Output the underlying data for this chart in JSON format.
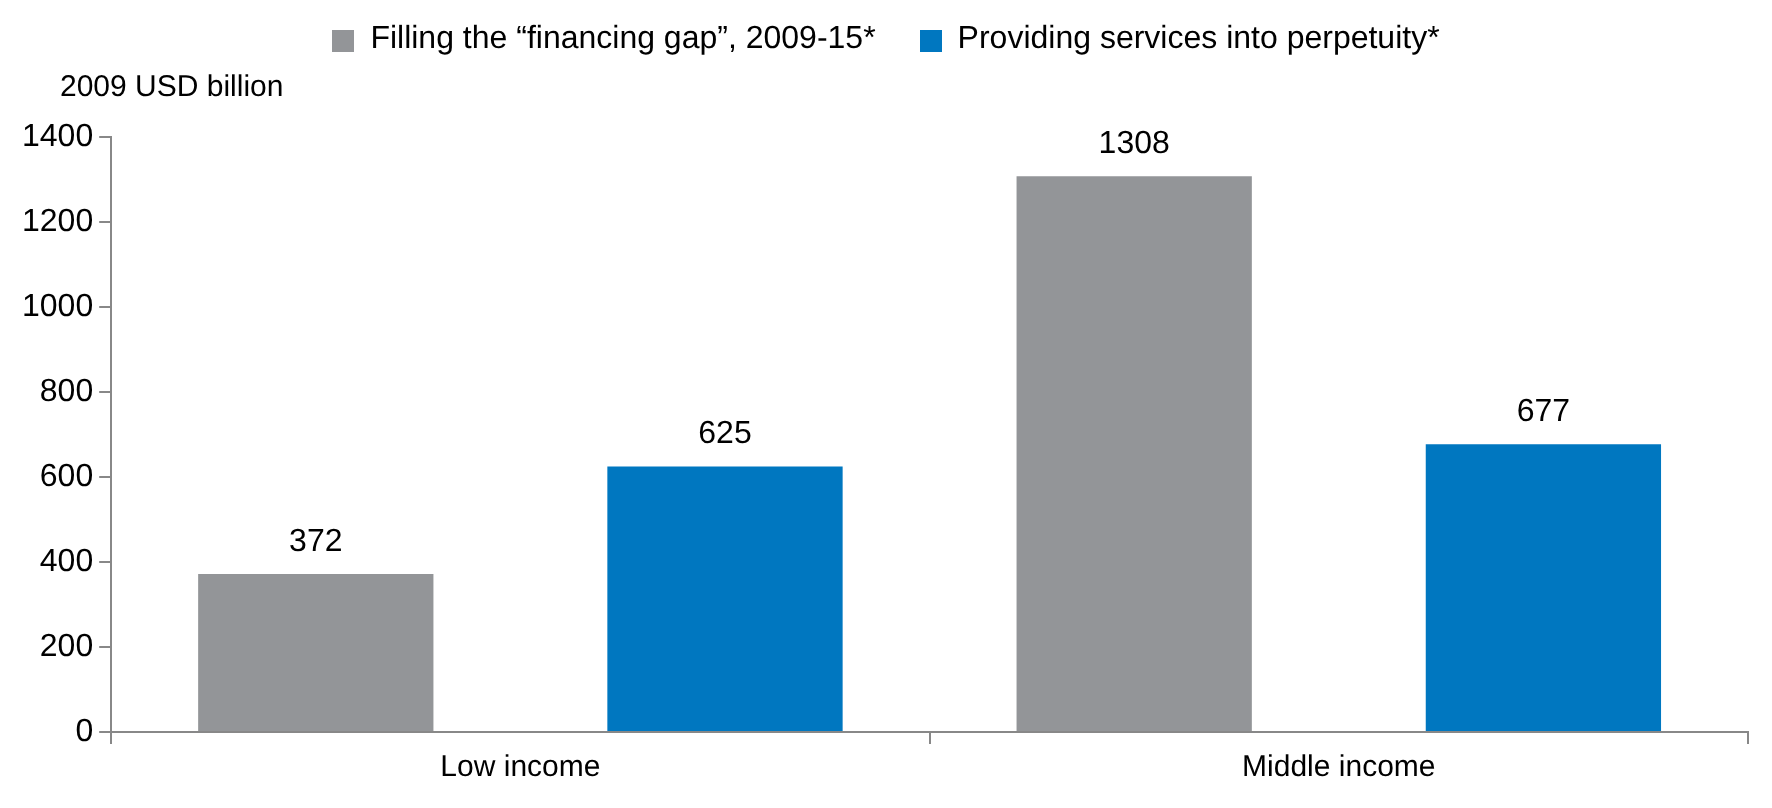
{
  "chart_data": {
    "type": "bar",
    "ylabel": "2009 USD billion",
    "categories": [
      "Low income",
      "Middle income"
    ],
    "series": [
      {
        "name": "Filling the “financing gap”, 2009-15*",
        "color": "#939598",
        "values": [
          372,
          1308
        ]
      },
      {
        "name": "Providing services into perpetuity*",
        "color": "#0077c0",
        "values": [
          625,
          677
        ]
      }
    ],
    "ylim": [
      0,
      1400
    ],
    "yticks": [
      0,
      200,
      400,
      600,
      800,
      1000,
      1200,
      1400
    ],
    "grid": false,
    "legend": "top",
    "data_labels": true
  }
}
